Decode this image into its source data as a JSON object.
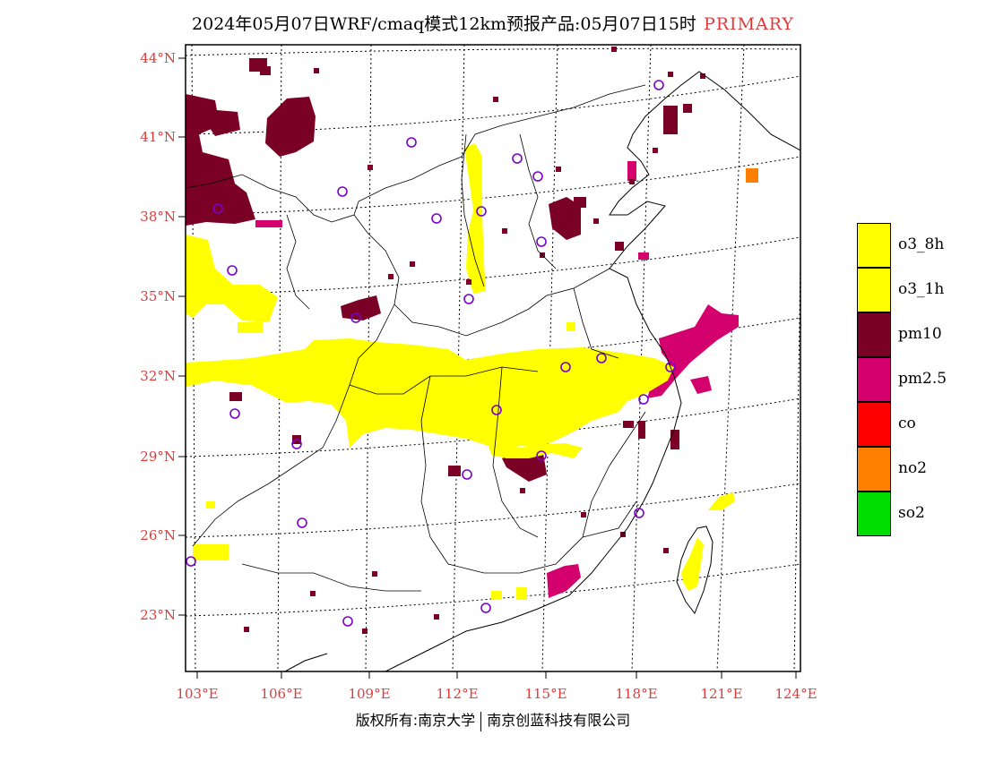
{
  "title": {
    "main": "2024年05月07日WRF/cmaq模式12km预报产品:05月07日15时",
    "tag": "PRIMARY"
  },
  "axes": {
    "lat_labels": [
      "44°N",
      "41°N",
      "38°N",
      "35°N",
      "32°N",
      "29°N",
      "26°N",
      "23°N"
    ],
    "lon_labels": [
      "103°E",
      "106°E",
      "109°E",
      "112°E",
      "115°E",
      "118°E",
      "121°E",
      "124°E"
    ]
  },
  "legend": [
    {
      "label": "o3_8h",
      "color": "#ffff00"
    },
    {
      "label": "o3_1h",
      "color": "#ffff00"
    },
    {
      "label": "pm10",
      "color": "#7a0025"
    },
    {
      "label": "pm2.5",
      "color": "#d4006e"
    },
    {
      "label": "co",
      "color": "#ff0000"
    },
    {
      "label": "no2",
      "color": "#ff7f00"
    },
    {
      "label": "so2",
      "color": "#00dd00"
    }
  ],
  "colors": {
    "label_red": "#e03a3a",
    "station_marker": "#7a00cc"
  },
  "copyright": {
    "left": "版权所有:南京大学",
    "right": "南京创蓝科技有限公司"
  }
}
